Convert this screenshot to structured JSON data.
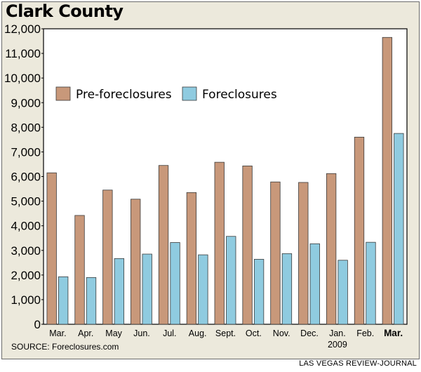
{
  "title": "Clark County",
  "source": "SOURCE: Foreclosures.com",
  "credit": "LAS VEGAS REVIEW-JOURNAL",
  "colors": {
    "pre_foreclosures": "#c8987a",
    "foreclosures": "#8fcbe0",
    "bar_stroke": "#3a3a3a",
    "background": "#ece9dc"
  },
  "chart_data": {
    "type": "bar",
    "categories": [
      "Mar.",
      "Apr.",
      "May",
      "Jun.",
      "Jul.",
      "Aug.",
      "Sept.",
      "Oct.",
      "Nov.",
      "Dec.",
      "Jan.",
      "Feb.",
      "Mar."
    ],
    "category_sublabels": [
      "",
      "",
      "",
      "",
      "",
      "",
      "",
      "",
      "",
      "",
      "2009",
      "",
      ""
    ],
    "series": [
      {
        "name": "Pre-foreclosures",
        "values": [
          6150,
          4420,
          5450,
          5080,
          6450,
          5350,
          6580,
          6430,
          5780,
          5760,
          6120,
          7600,
          11650
        ]
      },
      {
        "name": "Foreclosures",
        "values": [
          1930,
          1900,
          2670,
          2850,
          3320,
          2820,
          3570,
          2640,
          2870,
          3270,
          2600,
          3330,
          7750
        ]
      }
    ],
    "y_ticks": [
      "0",
      "1,000",
      "2,000",
      "3,000",
      "4,000",
      "5,000",
      "6,000",
      "7,000",
      "8,000",
      "9,000",
      "10,000",
      "11,000",
      "12,000"
    ],
    "ylim": [
      0,
      12000
    ],
    "grid": false,
    "legend": "top-left",
    "emphasized_category_index": 12,
    "xlabel": "",
    "ylabel": ""
  }
}
